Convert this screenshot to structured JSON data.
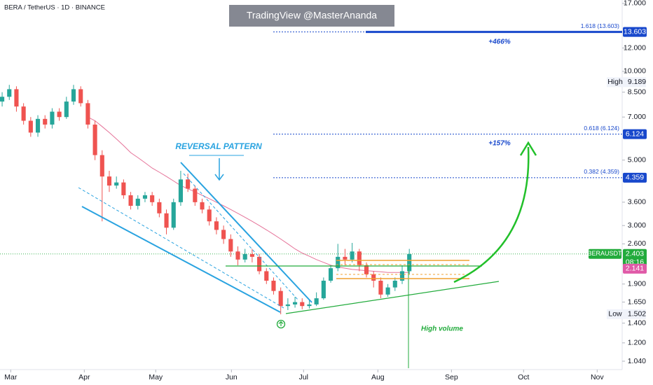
{
  "chart_data": {
    "type": "candlestick",
    "title": "BERA / TetherUS · 1D · BINANCE",
    "watermark": "TradingView @MasterAnanda",
    "log_scale": true,
    "up_color": "#26a69a",
    "down_color": "#ef5350",
    "series": {
      "open": [
        7.9,
        8.2,
        8.7,
        7.6,
        6.8,
        6.2,
        6.9,
        6.6,
        7.3,
        7.0,
        7.9,
        8.7,
        7.8,
        6.6,
        5.2,
        4.4,
        4.1,
        4.2,
        3.8,
        3.5,
        3.7,
        3.8,
        3.6,
        3.3,
        2.95,
        3.6,
        4.3,
        4.0,
        3.6,
        3.4,
        3.1,
        2.9,
        2.7,
        2.45,
        2.3,
        2.4,
        2.35,
        2.1,
        1.95,
        1.8,
        1.6,
        1.62,
        1.65,
        1.6,
        1.62,
        1.7,
        1.95,
        2.15,
        2.35,
        2.3,
        2.45,
        2.2,
        2.05,
        1.95,
        1.75,
        1.85,
        1.95,
        2.1
      ],
      "high": [
        8.5,
        9.0,
        8.9,
        7.8,
        7.0,
        7.1,
        7.1,
        7.5,
        7.5,
        8.2,
        9.0,
        8.9,
        8.0,
        6.8,
        5.4,
        4.6,
        4.4,
        4.3,
        3.9,
        3.8,
        3.9,
        3.9,
        3.7,
        3.4,
        3.7,
        4.6,
        4.5,
        4.1,
        3.7,
        3.5,
        3.2,
        3.0,
        2.8,
        2.55,
        2.5,
        2.5,
        2.4,
        2.15,
        2.0,
        1.85,
        1.7,
        1.72,
        1.7,
        1.68,
        1.78,
        2.0,
        2.2,
        2.6,
        2.5,
        2.62,
        2.5,
        2.25,
        2.1,
        2.0,
        1.9,
        2.0,
        2.2,
        2.5
      ],
      "low": [
        7.6,
        8.0,
        7.3,
        6.6,
        6.0,
        6.0,
        6.4,
        6.4,
        6.8,
        6.9,
        7.7,
        7.6,
        6.4,
        5.0,
        3.1,
        3.9,
        4.0,
        3.7,
        3.4,
        3.4,
        3.6,
        3.5,
        3.2,
        2.8,
        2.9,
        3.5,
        3.9,
        3.5,
        3.3,
        3.0,
        2.8,
        2.6,
        2.35,
        2.2,
        2.25,
        2.25,
        2.05,
        1.9,
        1.75,
        1.5,
        1.55,
        1.58,
        1.56,
        1.57,
        1.6,
        1.68,
        1.92,
        2.1,
        2.2,
        2.25,
        2.1,
        2.0,
        1.85,
        1.7,
        1.72,
        1.8,
        1.9,
        2.05
      ],
      "close": [
        8.2,
        8.7,
        7.6,
        6.8,
        6.2,
        6.9,
        6.6,
        7.3,
        7.0,
        7.9,
        8.7,
        7.8,
        6.6,
        5.2,
        4.4,
        4.1,
        4.2,
        3.8,
        3.5,
        3.7,
        3.8,
        3.6,
        3.3,
        2.95,
        3.6,
        4.3,
        4.0,
        3.6,
        3.4,
        3.1,
        2.9,
        2.7,
        2.45,
        2.3,
        2.4,
        2.35,
        2.1,
        1.95,
        1.8,
        1.6,
        1.62,
        1.65,
        1.6,
        1.62,
        1.7,
        1.95,
        2.15,
        2.35,
        2.3,
        2.45,
        2.2,
        2.05,
        1.95,
        1.75,
        1.85,
        1.95,
        2.1,
        2.4
      ]
    },
    "ma": {
      "color": "#e57399",
      "values": [
        null,
        null,
        null,
        null,
        null,
        null,
        null,
        null,
        null,
        null,
        null,
        null,
        7.0,
        6.8,
        6.5,
        6.2,
        5.9,
        5.6,
        5.3,
        5.1,
        4.9,
        4.7,
        4.55,
        4.4,
        4.25,
        4.1,
        4.0,
        3.9,
        3.8,
        3.7,
        3.6,
        3.5,
        3.4,
        3.3,
        3.2,
        3.1,
        3.0,
        2.9,
        2.8,
        2.7,
        2.6,
        2.5,
        2.42,
        2.36,
        2.3,
        2.25,
        2.2,
        2.17,
        2.15,
        2.13,
        2.12,
        2.11,
        2.1,
        2.09,
        2.08,
        2.08,
        2.08,
        2.08
      ]
    },
    "xlim": [
      -0.3,
      86.8
    ],
    "xticks": [
      {
        "value": 1.2,
        "label": "Mar"
      },
      {
        "value": 11.5,
        "label": "Apr"
      },
      {
        "value": 21.5,
        "label": "May"
      },
      {
        "value": 32.1,
        "label": "Jun"
      },
      {
        "value": 42.2,
        "label": "Jul"
      },
      {
        "value": 52.6,
        "label": "Aug"
      },
      {
        "value": 62.9,
        "label": "Sep"
      },
      {
        "value": 73.0,
        "label": "Oct"
      },
      {
        "value": 83.3,
        "label": "Nov"
      }
    ],
    "ylim": [
      0.974,
      17.46
    ],
    "yticks": [
      {
        "value": 17,
        "label": "17.000"
      },
      {
        "value": 12,
        "label": "12.000"
      },
      {
        "value": 10,
        "label": "10.000"
      },
      {
        "value": 8.5,
        "label": "8.500"
      },
      {
        "value": 7,
        "label": "7.000"
      },
      {
        "value": 5,
        "label": "5.000"
      },
      {
        "value": 3.6,
        "label": "3.600"
      },
      {
        "value": 3,
        "label": "3.000"
      },
      {
        "value": 2.6,
        "label": "2.600"
      },
      {
        "value": 1.9,
        "label": "1.900"
      },
      {
        "value": 1.65,
        "label": "1.650"
      },
      {
        "value": 1.4,
        "label": "1.400"
      },
      {
        "value": 1.2,
        "label": "1.200"
      },
      {
        "value": 1.04,
        "label": "1.040"
      }
    ],
    "fib_levels": [
      {
        "label": "1.618 (13.603)",
        "value": 13.603,
        "color": "#1848cc",
        "thick": true
      },
      {
        "label": "0.618 (6.124)",
        "value": 6.124,
        "color": "#1848cc",
        "thick": false
      },
      {
        "label": "0.382 (4.359)",
        "value": 4.359,
        "color": "#1848cc",
        "thick": false
      }
    ],
    "high": {
      "label": "High",
      "value": 9.189
    },
    "low": {
      "label": "Low",
      "value": 1.502
    },
    "last_price": {
      "symbol": "BERAUSDT",
      "value": 2.403,
      "countdown": "08:16",
      "color": "#22ab3c"
    },
    "ma_price": {
      "value": 2.141,
      "color": "#e05aa8"
    },
    "annotations": {
      "gain_high": "+466%",
      "gain_mid": "+157%",
      "pattern": "REVERSAL PATTERN",
      "volume": "High volume"
    }
  }
}
